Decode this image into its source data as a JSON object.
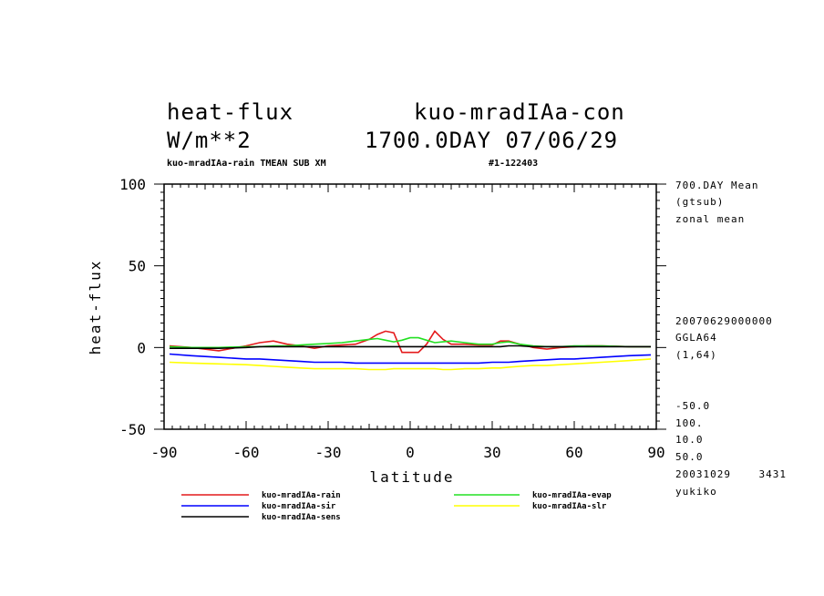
{
  "header": {
    "title_left": "heat-flux",
    "title_right": "kuo-mradIAa-con",
    "units": "W/m**2",
    "date": "1700.0DAY 07/06/29",
    "sub_left": "kuo-mradIAa-rain TMEAN SUB XM",
    "sub_right": "#1-122403"
  },
  "side_info": {
    "line1": "700.DAY Mean",
    "line2": "(gtsub)",
    "line3": "zonal mean",
    "line4": "20070629000000",
    "line5": "GGLA64",
    "line6": "(1,64)",
    "line7": "-50.0",
    "line8": "100.",
    "line9": "10.0",
    "line10": "50.0",
    "line11": "20031029    3431",
    "line12": "yukiko"
  },
  "chart_data": {
    "type": "line",
    "xlabel": "latitude",
    "ylabel": "heat-flux",
    "xlim": [
      -90,
      90
    ],
    "ylim": [
      -50,
      100
    ],
    "xticks": [
      -90,
      -60,
      -30,
      0,
      30,
      60,
      90
    ],
    "yticks": [
      -50,
      0,
      50,
      100
    ],
    "grid": false,
    "legend_position": "bottom",
    "x": [
      -88,
      -80,
      -70,
      -60,
      -55,
      -50,
      -45,
      -40,
      -35,
      -30,
      -25,
      -20,
      -15,
      -12,
      -9,
      -6,
      -3,
      0,
      3,
      6,
      9,
      12,
      15,
      20,
      25,
      30,
      33,
      36,
      40,
      45,
      50,
      55,
      60,
      65,
      70,
      80,
      88
    ],
    "series": [
      {
        "name": "kuo-mradIAa-rain",
        "color": "#e41a1c",
        "values": [
          1,
          0,
          -2,
          1,
          3,
          4,
          2,
          1,
          -0.5,
          1,
          1.5,
          2,
          5,
          8,
          10,
          9,
          -3,
          -3,
          -3,
          2,
          10,
          5,
          2,
          2,
          1.5,
          1.5,
          4,
          4,
          2,
          0,
          -1,
          0,
          0.5,
          1,
          1,
          0.5,
          0.5
        ]
      },
      {
        "name": "kuo-mradIAa-evap",
        "color": "#22e022",
        "values": [
          0.5,
          0,
          0,
          0.5,
          0.5,
          1,
          1,
          1.5,
          2,
          2.5,
          3,
          4,
          5,
          5.5,
          4.5,
          3.5,
          4.5,
          6,
          6,
          4.5,
          3,
          3.5,
          4,
          3,
          2,
          2,
          3,
          3.5,
          2,
          1,
          0.5,
          0.5,
          1,
          1,
          1,
          0.5,
          0.5
        ]
      },
      {
        "name": "kuo-mradIAa-sir",
        "color": "#0000ff",
        "values": [
          -4,
          -5,
          -6,
          -7,
          -7,
          -7.5,
          -8,
          -8.5,
          -9,
          -9,
          -9,
          -9.5,
          -9.5,
          -9.5,
          -9.5,
          -9.5,
          -9.5,
          -9.5,
          -9.5,
          -9.5,
          -9.5,
          -9.5,
          -9.5,
          -9.5,
          -9.5,
          -9,
          -9,
          -9,
          -8.5,
          -8,
          -7.5,
          -7,
          -7,
          -6.5,
          -6,
          -5,
          -4.5
        ]
      },
      {
        "name": "kuo-mradIAa-slr",
        "color": "#ffff00",
        "values": [
          -9,
          -9.5,
          -10,
          -10.5,
          -11,
          -11.5,
          -12,
          -12.5,
          -13,
          -13,
          -13,
          -13,
          -13.5,
          -13.5,
          -13.5,
          -13,
          -13,
          -13,
          -13,
          -13,
          -13,
          -13.5,
          -13.5,
          -13,
          -13,
          -12.5,
          -12.5,
          -12,
          -11.5,
          -11,
          -11,
          -10.5,
          -10,
          -9.5,
          -9,
          -8,
          -7
        ]
      },
      {
        "name": "kuo-mradIAa-sens",
        "color": "#000000",
        "values": [
          -0.5,
          -0.5,
          -0.5,
          0,
          0.5,
          0.5,
          0.5,
          0.5,
          0.5,
          0.5,
          0.5,
          0.5,
          0.5,
          0.5,
          0.5,
          0.5,
          0.5,
          0.5,
          0.5,
          0.5,
          0.5,
          0.5,
          0.5,
          0.5,
          0.5,
          0.5,
          0.5,
          1,
          1,
          0.5,
          0.5,
          0.5,
          0.5,
          0.5,
          0.5,
          0.5,
          0.5
        ]
      }
    ]
  }
}
